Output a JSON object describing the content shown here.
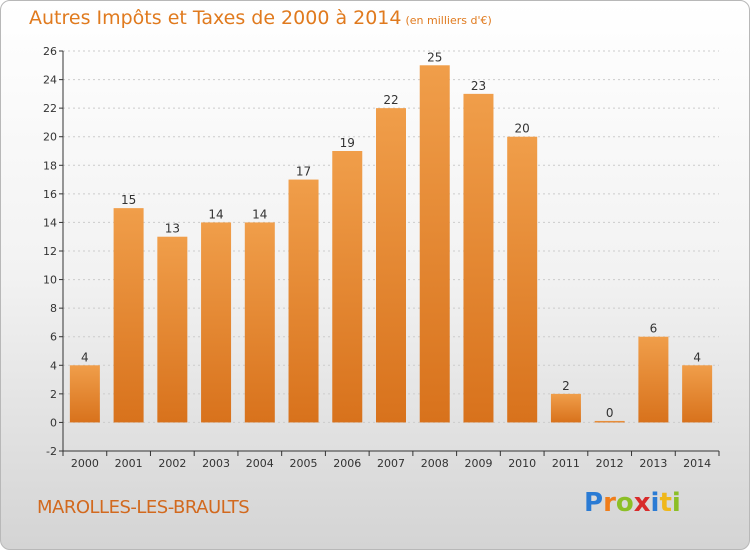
{
  "title": "Autres Impôts et Taxes de 2000 à 2014",
  "unit": "(en milliers d'€)",
  "town": "MAROLLES-LES-BRAULTS",
  "brand": {
    "letters": [
      "P",
      "r",
      "o",
      "x",
      "i",
      "t",
      "i"
    ],
    "colors": [
      "#2a7bd4",
      "#f07d1a",
      "#8cbf26",
      "#d82a2a",
      "#2a7bd4",
      "#f0b81a",
      "#8cbf26"
    ]
  },
  "colors": {
    "bar": "#f09e4a",
    "bar_dark": "#d8721c",
    "axis": "#333333",
    "grid": "#cccccc"
  },
  "chart_data": {
    "type": "bar",
    "title": "Autres Impôts et Taxes de 2000 à 2014",
    "categories": [
      "2000",
      "2001",
      "2002",
      "2003",
      "2004",
      "2005",
      "2006",
      "2007",
      "2008",
      "2009",
      "2010",
      "2011",
      "2012",
      "2013",
      "2014"
    ],
    "values": [
      4,
      15,
      13,
      14,
      14,
      17,
      19,
      22,
      25,
      23,
      20,
      2,
      0,
      6,
      4
    ],
    "ylim": [
      -2,
      26
    ],
    "yticks": [
      -2,
      0,
      2,
      4,
      6,
      8,
      10,
      12,
      14,
      16,
      18,
      20,
      22,
      24,
      26
    ],
    "grid": true,
    "legend": "none"
  }
}
